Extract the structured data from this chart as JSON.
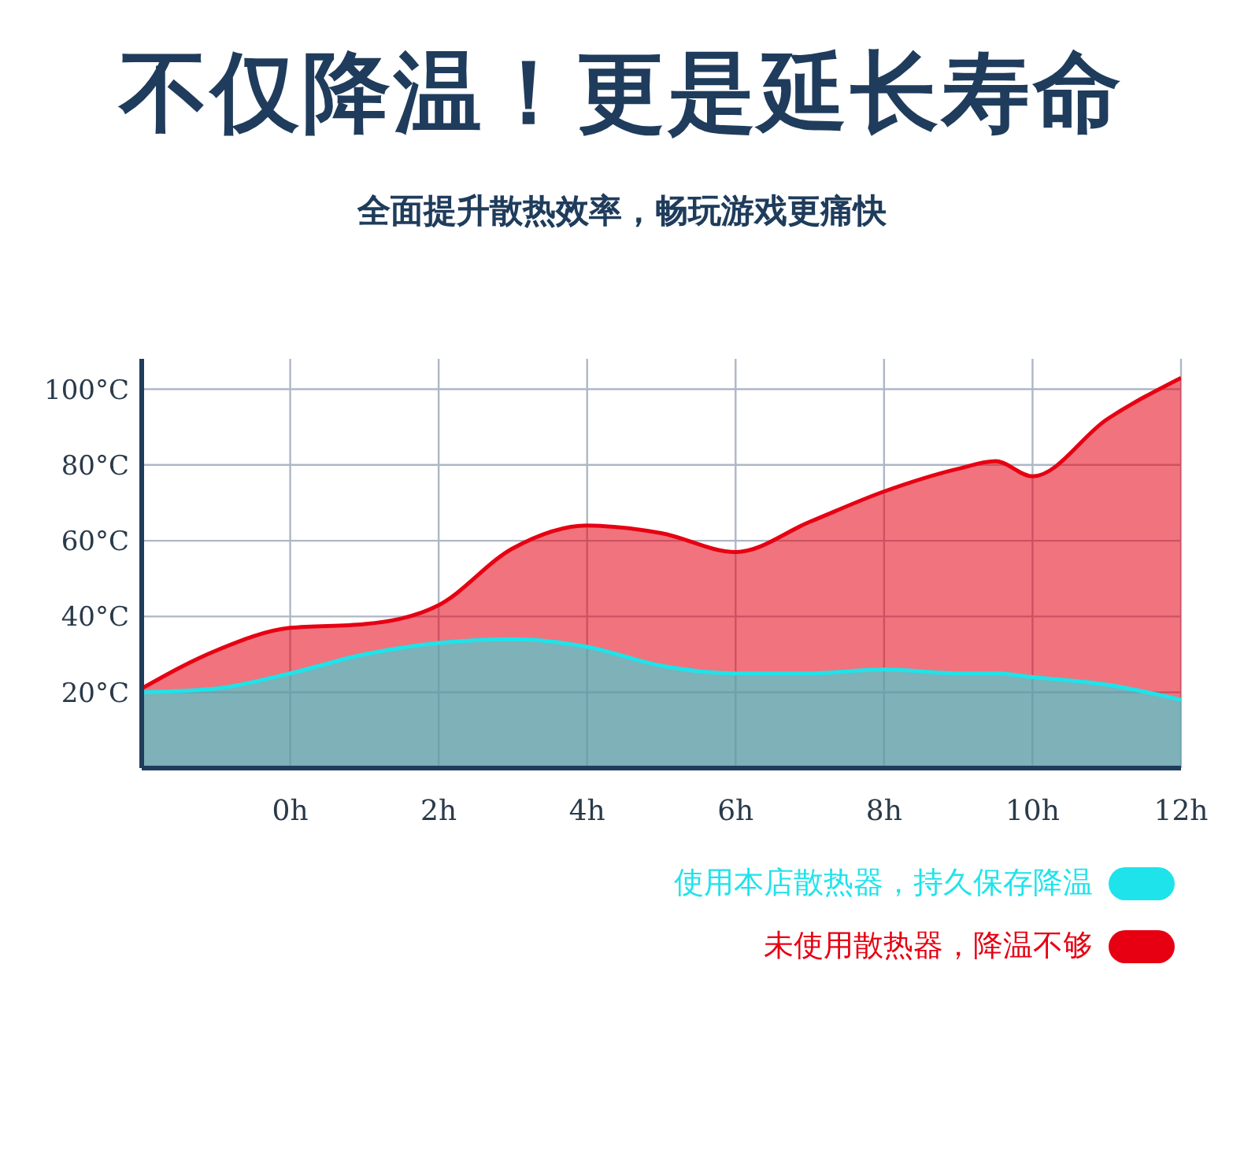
{
  "chart_data": {
    "type": "area",
    "title": "不仅降温！更是延长寿命",
    "subtitle": "全面提升散热效率，畅玩游戏更痛快",
    "x": [
      -2,
      -1,
      0,
      1,
      2,
      3,
      4,
      5,
      6,
      7,
      8,
      9,
      9.5,
      10,
      11,
      12
    ],
    "series": [
      {
        "name": "未使用散热器，降温不够",
        "color": "#e60012",
        "values": [
          21,
          31,
          37,
          38,
          43,
          58,
          64,
          62,
          57,
          65,
          73,
          79,
          81,
          77,
          92,
          103
        ]
      },
      {
        "name": "使用本店散热器，持久保存降温",
        "color": "#1fe3ea",
        "values": [
          20,
          21,
          25,
          30,
          33,
          34,
          32,
          27,
          25,
          25,
          26,
          25,
          25,
          24,
          22,
          18
        ]
      }
    ],
    "xlim": [
      -2,
      12
    ],
    "ylim": [
      0,
      108
    ],
    "xticks": [
      {
        "value": 0,
        "label": "0h"
      },
      {
        "value": 2,
        "label": "2h"
      },
      {
        "value": 4,
        "label": "4h"
      },
      {
        "value": 6,
        "label": "6h"
      },
      {
        "value": 8,
        "label": "8h"
      },
      {
        "value": 10,
        "label": "10h"
      },
      {
        "value": 12,
        "label": "12h"
      }
    ],
    "yticks": [
      {
        "value": 20,
        "label": "20°C"
      },
      {
        "value": 40,
        "label": "40°C"
      },
      {
        "value": 60,
        "label": "60°C"
      },
      {
        "value": 80,
        "label": "80°C"
      },
      {
        "value": 100,
        "label": "100°C"
      }
    ],
    "grid": true,
    "legend": "bottom right"
  }
}
